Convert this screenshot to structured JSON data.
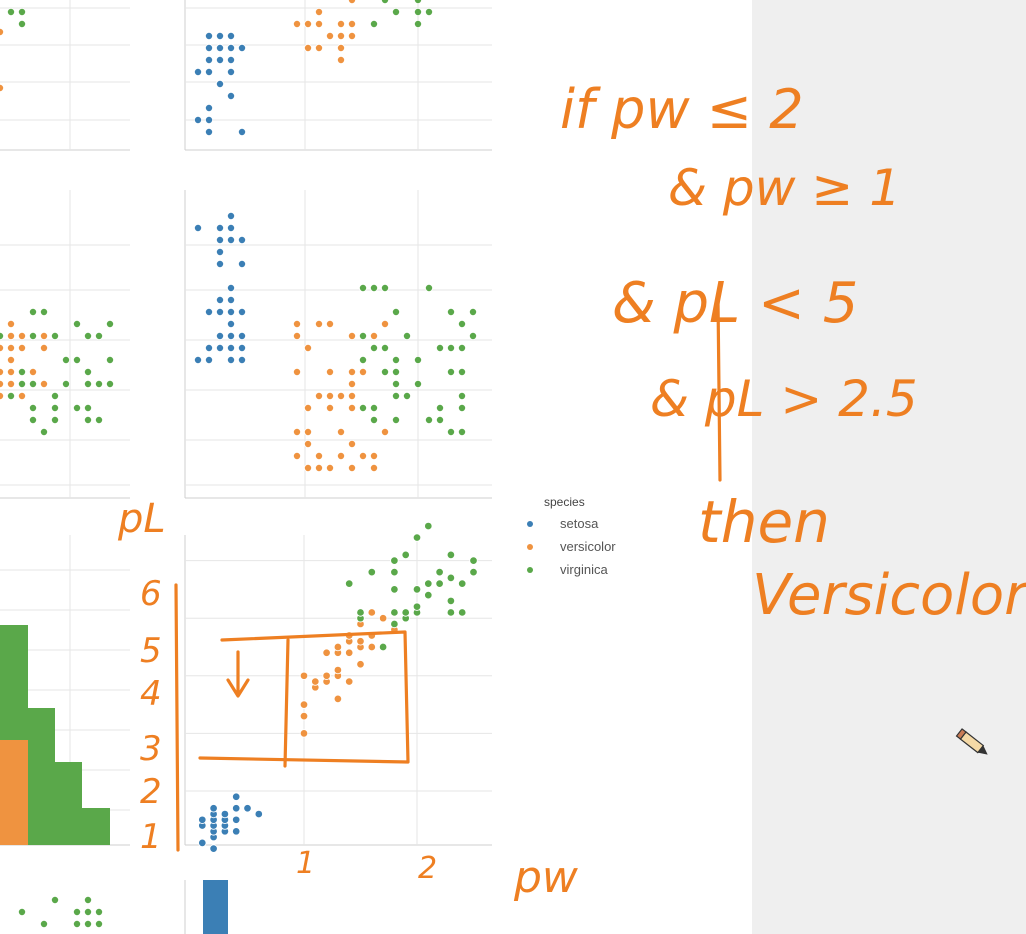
{
  "colors": {
    "setosa": "#3b7fb5",
    "versicolor": "#ef9340",
    "virginica": "#5aa84a",
    "grid": "#e6e6e6",
    "ink": "#ee7f22",
    "sidebar": "#efefef"
  },
  "legend": {
    "title": "species",
    "items": [
      "setosa",
      "versicolor",
      "virginica"
    ]
  },
  "annotations": {
    "rule_lines": [
      "if pw ≤ 2",
      "& pw ≥ 1",
      "& pL < 5",
      "& pL > 2.5",
      "then",
      "Versicolor"
    ],
    "axis_label_y": "pL",
    "axis_label_x": "pw",
    "y_ticks_hand": [
      "6",
      "5",
      "4",
      "3",
      "2",
      "1"
    ],
    "x_ticks_hand": [
      "1",
      "2"
    ]
  },
  "cursor_icon": "pencil-icon",
  "chart_data": {
    "type": "scatter",
    "title": "",
    "xlabel": "petal_width",
    "ylabel": "petal_length",
    "xlim": [
      0,
      2.6
    ],
    "ylim": [
      0.8,
      7.0
    ],
    "grid": true,
    "legend_position": "right",
    "series": [
      {
        "name": "setosa",
        "points": [
          [
            0.1,
            1.1
          ],
          [
            0.1,
            1.4
          ],
          [
            0.1,
            1.5
          ],
          [
            0.2,
            1.0
          ],
          [
            0.2,
            1.2
          ],
          [
            0.2,
            1.3
          ],
          [
            0.2,
            1.4
          ],
          [
            0.2,
            1.5
          ],
          [
            0.2,
            1.6
          ],
          [
            0.2,
            1.7
          ],
          [
            0.3,
            1.3
          ],
          [
            0.3,
            1.4
          ],
          [
            0.3,
            1.5
          ],
          [
            0.3,
            1.6
          ],
          [
            0.4,
            1.3
          ],
          [
            0.4,
            1.5
          ],
          [
            0.4,
            1.7
          ],
          [
            0.4,
            1.9
          ],
          [
            0.5,
            1.7
          ],
          [
            0.6,
            1.6
          ]
        ]
      },
      {
        "name": "versicolor",
        "points": [
          [
            1.0,
            3.0
          ],
          [
            1.0,
            3.3
          ],
          [
            1.0,
            3.5
          ],
          [
            1.0,
            4.0
          ],
          [
            1.1,
            3.8
          ],
          [
            1.1,
            3.9
          ],
          [
            1.2,
            3.9
          ],
          [
            1.2,
            4.0
          ],
          [
            1.2,
            4.4
          ],
          [
            1.3,
            3.6
          ],
          [
            1.3,
            4.0
          ],
          [
            1.3,
            4.1
          ],
          [
            1.3,
            4.4
          ],
          [
            1.3,
            4.5
          ],
          [
            1.4,
            3.9
          ],
          [
            1.4,
            4.4
          ],
          [
            1.4,
            4.6
          ],
          [
            1.4,
            4.7
          ],
          [
            1.5,
            4.2
          ],
          [
            1.5,
            4.5
          ],
          [
            1.5,
            4.6
          ],
          [
            1.5,
            4.9
          ],
          [
            1.6,
            4.5
          ],
          [
            1.6,
            4.7
          ],
          [
            1.6,
            5.1
          ],
          [
            1.7,
            5.0
          ],
          [
            1.8,
            4.8
          ]
        ]
      },
      {
        "name": "virginica",
        "points": [
          [
            1.4,
            5.6
          ],
          [
            1.5,
            5.0
          ],
          [
            1.5,
            5.1
          ],
          [
            1.6,
            5.8
          ],
          [
            1.7,
            4.5
          ],
          [
            1.8,
            4.9
          ],
          [
            1.8,
            5.1
          ],
          [
            1.8,
            5.5
          ],
          [
            1.8,
            5.8
          ],
          [
            1.8,
            6.0
          ],
          [
            1.9,
            5.0
          ],
          [
            1.9,
            5.1
          ],
          [
            1.9,
            6.1
          ],
          [
            2.0,
            5.1
          ],
          [
            2.0,
            5.2
          ],
          [
            2.0,
            5.5
          ],
          [
            2.0,
            6.4
          ],
          [
            2.1,
            5.4
          ],
          [
            2.1,
            5.6
          ],
          [
            2.1,
            6.6
          ],
          [
            2.2,
            5.6
          ],
          [
            2.2,
            5.8
          ],
          [
            2.3,
            5.1
          ],
          [
            2.3,
            5.3
          ],
          [
            2.3,
            5.7
          ],
          [
            2.3,
            6.1
          ],
          [
            2.4,
            5.1
          ],
          [
            2.4,
            5.6
          ],
          [
            2.5,
            5.8
          ],
          [
            2.5,
            6.0
          ]
        ]
      }
    ]
  }
}
